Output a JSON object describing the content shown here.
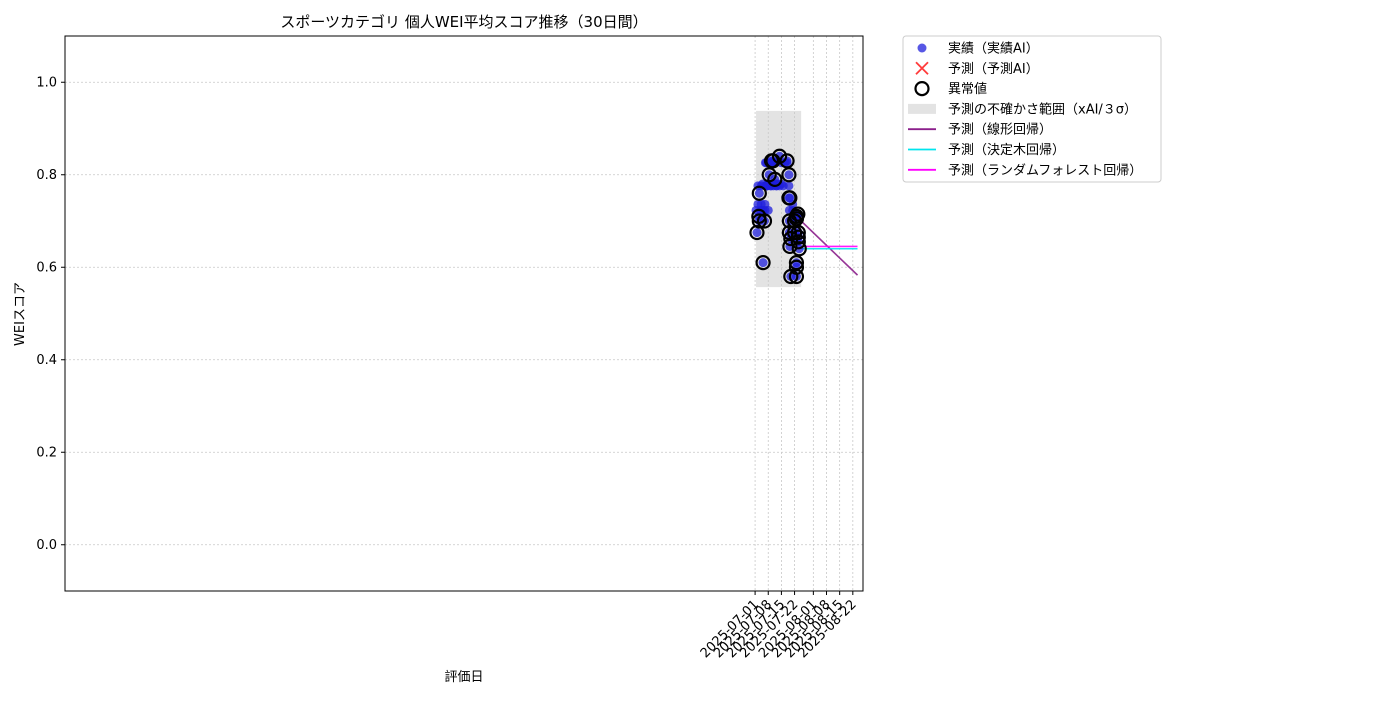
{
  "chart_data": {
    "type": "scatter",
    "title": "スポーツカテゴリ 個人WEI平均スコア推移（30日間）",
    "xlabel": "評価日",
    "ylabel": "WEIスコア",
    "x_axis_type": "date",
    "xlim": [
      "2024-06-28T19:00",
      "2025-08-27T10:00"
    ],
    "ylim": [
      -0.1,
      1.1
    ],
    "y_ticks": [
      0.0,
      0.2,
      0.4,
      0.6,
      0.8,
      1.0
    ],
    "y_tick_labels": [
      "0.0",
      "0.2",
      "0.4",
      "0.6",
      "0.8",
      "1.0"
    ],
    "x_ticks": [
      "2025-07-01",
      "2025-07-08",
      "2025-07-15",
      "2025-07-22",
      "2025-08-01",
      "2025-08-08",
      "2025-08-15",
      "2025-08-22"
    ],
    "x_tick_labels": [
      "2025-07-01",
      "2025-07-08",
      "2025-07-15",
      "2025-07-22",
      "2025-08-01",
      "2025-08-08",
      "2025-08-15",
      "2025-08-22"
    ],
    "grid": true,
    "legend_position": "outside-top-right",
    "colors": {
      "actual": "#1f1fdc",
      "predicted": "#ff3b3b",
      "anomaly": "#000000",
      "band": "#d9d9d9",
      "linear": "#8b1f8b",
      "tree": "#00e5ee",
      "forest": "#ff00ff",
      "grid": "#c8c8c8"
    },
    "legend": [
      {
        "key": "actual",
        "label": "実績（実績AI）",
        "marker": "dot"
      },
      {
        "key": "predicted",
        "label": "予測（予測AI）",
        "marker": "x"
      },
      {
        "key": "anomaly",
        "label": "異常値",
        "marker": "ring"
      },
      {
        "key": "band",
        "label": "予測の不確かさ範囲（xAI/３σ）",
        "marker": "band"
      },
      {
        "key": "linear",
        "label": "予測（線形回帰）",
        "marker": "line"
      },
      {
        "key": "tree",
        "label": "予測（決定木回帰）",
        "marker": "line"
      },
      {
        "key": "forest",
        "label": "予測（ランダムフォレスト回帰）",
        "marker": "line"
      }
    ],
    "uncertainty_band": {
      "x_start": "2025-07-01T12:00",
      "x_end": "2025-07-25T12:00",
      "y_low": 0.557,
      "y_high": 0.938
    },
    "series": [
      {
        "name": "実績（実績AI）",
        "key": "actual",
        "points": [
          [
            "2025-07-01T12:00",
            0.723
          ],
          [
            "2025-07-02T00:00",
            0.675
          ],
          [
            "2025-07-02T12:00",
            0.736
          ],
          [
            "2025-07-02T12:00",
            0.776
          ],
          [
            "2025-07-03T00:00",
            0.71
          ],
          [
            "2025-07-03T06:00",
            0.7
          ],
          [
            "2025-07-03T06:00",
            0.76
          ],
          [
            "2025-07-04T00:00",
            0.723
          ],
          [
            "2025-07-04T06:00",
            0.736
          ],
          [
            "2025-07-04T06:00",
            0.776
          ],
          [
            "2025-07-05T00:00",
            0.78
          ],
          [
            "2025-07-05T06:00",
            0.61
          ],
          [
            "2025-07-05T06:00",
            0.723
          ],
          [
            "2025-07-06T00:00",
            0.7
          ],
          [
            "2025-07-06T06:00",
            0.723
          ],
          [
            "2025-07-06T06:00",
            0.736
          ],
          [
            "2025-07-06T12:00",
            0.776
          ],
          [
            "2025-07-06T12:00",
            0.826
          ],
          [
            "2025-07-07T00:00",
            0.776
          ],
          [
            "2025-07-07T00:00",
            0.826
          ],
          [
            "2025-07-07T06:00",
            0.776
          ],
          [
            "2025-07-07T12:00",
            0.776
          ],
          [
            "2025-07-07T18:00",
            0.78
          ],
          [
            "2025-07-08T00:00",
            0.723
          ],
          [
            "2025-07-08T00:00",
            0.78
          ],
          [
            "2025-07-08T06:00",
            0.826
          ],
          [
            "2025-07-08T12:00",
            0.78
          ],
          [
            "2025-07-08T12:00",
            0.8
          ],
          [
            "2025-07-09T00:00",
            0.78
          ],
          [
            "2025-07-09T06:00",
            0.776
          ],
          [
            "2025-07-09T12:00",
            0.776
          ],
          [
            "2025-07-09T18:00",
            0.826
          ],
          [
            "2025-07-09T18:00",
            0.83
          ],
          [
            "2025-07-10T06:00",
            0.78
          ],
          [
            "2025-07-10T12:00",
            0.826
          ],
          [
            "2025-07-10T12:00",
            0.83
          ],
          [
            "2025-07-10T18:00",
            0.776
          ],
          [
            "2025-07-11T00:00",
            0.78
          ],
          [
            "2025-07-11T06:00",
            0.826
          ],
          [
            "2025-07-11T12:00",
            0.826
          ],
          [
            "2025-07-11T12:00",
            0.79
          ],
          [
            "2025-07-12T00:00",
            0.78
          ],
          [
            "2025-07-12T06:00",
            0.776
          ],
          [
            "2025-07-12T12:00",
            0.776
          ],
          [
            "2025-07-13T00:00",
            0.78
          ],
          [
            "2025-07-14T00:00",
            0.776
          ],
          [
            "2025-07-14T00:00",
            0.84
          ],
          [
            "2025-07-15T00:00",
            0.78
          ],
          [
            "2025-07-15T00:00",
            0.826
          ],
          [
            "2025-07-16T00:00",
            0.776
          ],
          [
            "2025-07-17T00:00",
            0.826
          ],
          [
            "2025-07-18T00:00",
            0.826
          ],
          [
            "2025-07-18T00:00",
            0.83
          ],
          [
            "2025-07-19T00:00",
            0.776
          ],
          [
            "2025-07-19T00:00",
            0.8
          ],
          [
            "2025-07-19T00:00",
            0.75
          ],
          [
            "2025-07-19T06:00",
            0.723
          ],
          [
            "2025-07-19T06:00",
            0.7
          ],
          [
            "2025-07-19T06:00",
            0.675
          ],
          [
            "2025-07-19T12:00",
            0.75
          ],
          [
            "2025-07-19T12:00",
            0.645
          ],
          [
            "2025-07-20T00:00",
            0.662
          ],
          [
            "2025-07-20T00:00",
            0.58
          ],
          [
            "2025-07-21T00:00",
            0.736
          ],
          [
            "2025-07-21T00:00",
            0.723
          ],
          [
            "2025-07-22T00:00",
            0.675
          ],
          [
            "2025-07-22T00:00",
            0.7
          ],
          [
            "2025-07-23T00:00",
            0.705
          ],
          [
            "2025-07-23T00:00",
            0.71
          ],
          [
            "2025-07-23T00:00",
            0.61
          ],
          [
            "2025-07-23T00:00",
            0.6
          ],
          [
            "2025-07-23T00:00",
            0.58
          ],
          [
            "2025-07-23T18:00",
            0.715
          ],
          [
            "2025-07-24T00:00",
            0.715
          ],
          [
            "2025-07-24T00:00",
            0.675
          ],
          [
            "2025-07-24T00:00",
            0.665
          ],
          [
            "2025-07-24T00:00",
            0.655
          ],
          [
            "2025-07-24T12:00",
            0.64
          ]
        ]
      },
      {
        "name": "異常値",
        "key": "anomaly",
        "points": [
          [
            "2025-07-02T00:00",
            0.675
          ],
          [
            "2025-07-03T00:00",
            0.71
          ],
          [
            "2025-07-03T06:00",
            0.7
          ],
          [
            "2025-07-03T06:00",
            0.76
          ],
          [
            "2025-07-05T06:00",
            0.61
          ],
          [
            "2025-07-06T00:00",
            0.7
          ],
          [
            "2025-07-08T12:00",
            0.8
          ],
          [
            "2025-07-09T18:00",
            0.83
          ],
          [
            "2025-07-10T12:00",
            0.83
          ],
          [
            "2025-07-11T12:00",
            0.79
          ],
          [
            "2025-07-14T00:00",
            0.84
          ],
          [
            "2025-07-18T00:00",
            0.83
          ],
          [
            "2025-07-19T00:00",
            0.8
          ],
          [
            "2025-07-19T00:00",
            0.75
          ],
          [
            "2025-07-19T06:00",
            0.7
          ],
          [
            "2025-07-19T06:00",
            0.675
          ],
          [
            "2025-07-19T12:00",
            0.75
          ],
          [
            "2025-07-19T12:00",
            0.645
          ],
          [
            "2025-07-20T00:00",
            0.662
          ],
          [
            "2025-07-20T00:00",
            0.58
          ],
          [
            "2025-07-22T00:00",
            0.7
          ],
          [
            "2025-07-22T00:00",
            0.675
          ],
          [
            "2025-07-23T00:00",
            0.71
          ],
          [
            "2025-07-23T00:00",
            0.705
          ],
          [
            "2025-07-23T00:00",
            0.61
          ],
          [
            "2025-07-23T00:00",
            0.6
          ],
          [
            "2025-07-23T00:00",
            0.58
          ],
          [
            "2025-07-23T18:00",
            0.715
          ],
          [
            "2025-07-24T00:00",
            0.675
          ],
          [
            "2025-07-24T00:00",
            0.665
          ],
          [
            "2025-07-24T00:00",
            0.655
          ],
          [
            "2025-07-24T12:00",
            0.64
          ]
        ]
      },
      {
        "name": "予測（線形回帰）",
        "key": "linear",
        "points": [
          [
            "2025-07-25T12:00",
            0.7
          ],
          [
            "2025-08-24T12:00",
            0.583
          ]
        ]
      },
      {
        "name": "予測（決定木回帰）",
        "key": "tree",
        "points": [
          [
            "2025-07-25T12:00",
            0.64
          ],
          [
            "2025-08-24T12:00",
            0.64
          ]
        ]
      },
      {
        "name": "予測（ランダムフォレスト回帰）",
        "key": "forest",
        "points": [
          [
            "2025-07-25T12:00",
            0.645
          ],
          [
            "2025-08-24T12:00",
            0.645
          ]
        ]
      }
    ]
  }
}
